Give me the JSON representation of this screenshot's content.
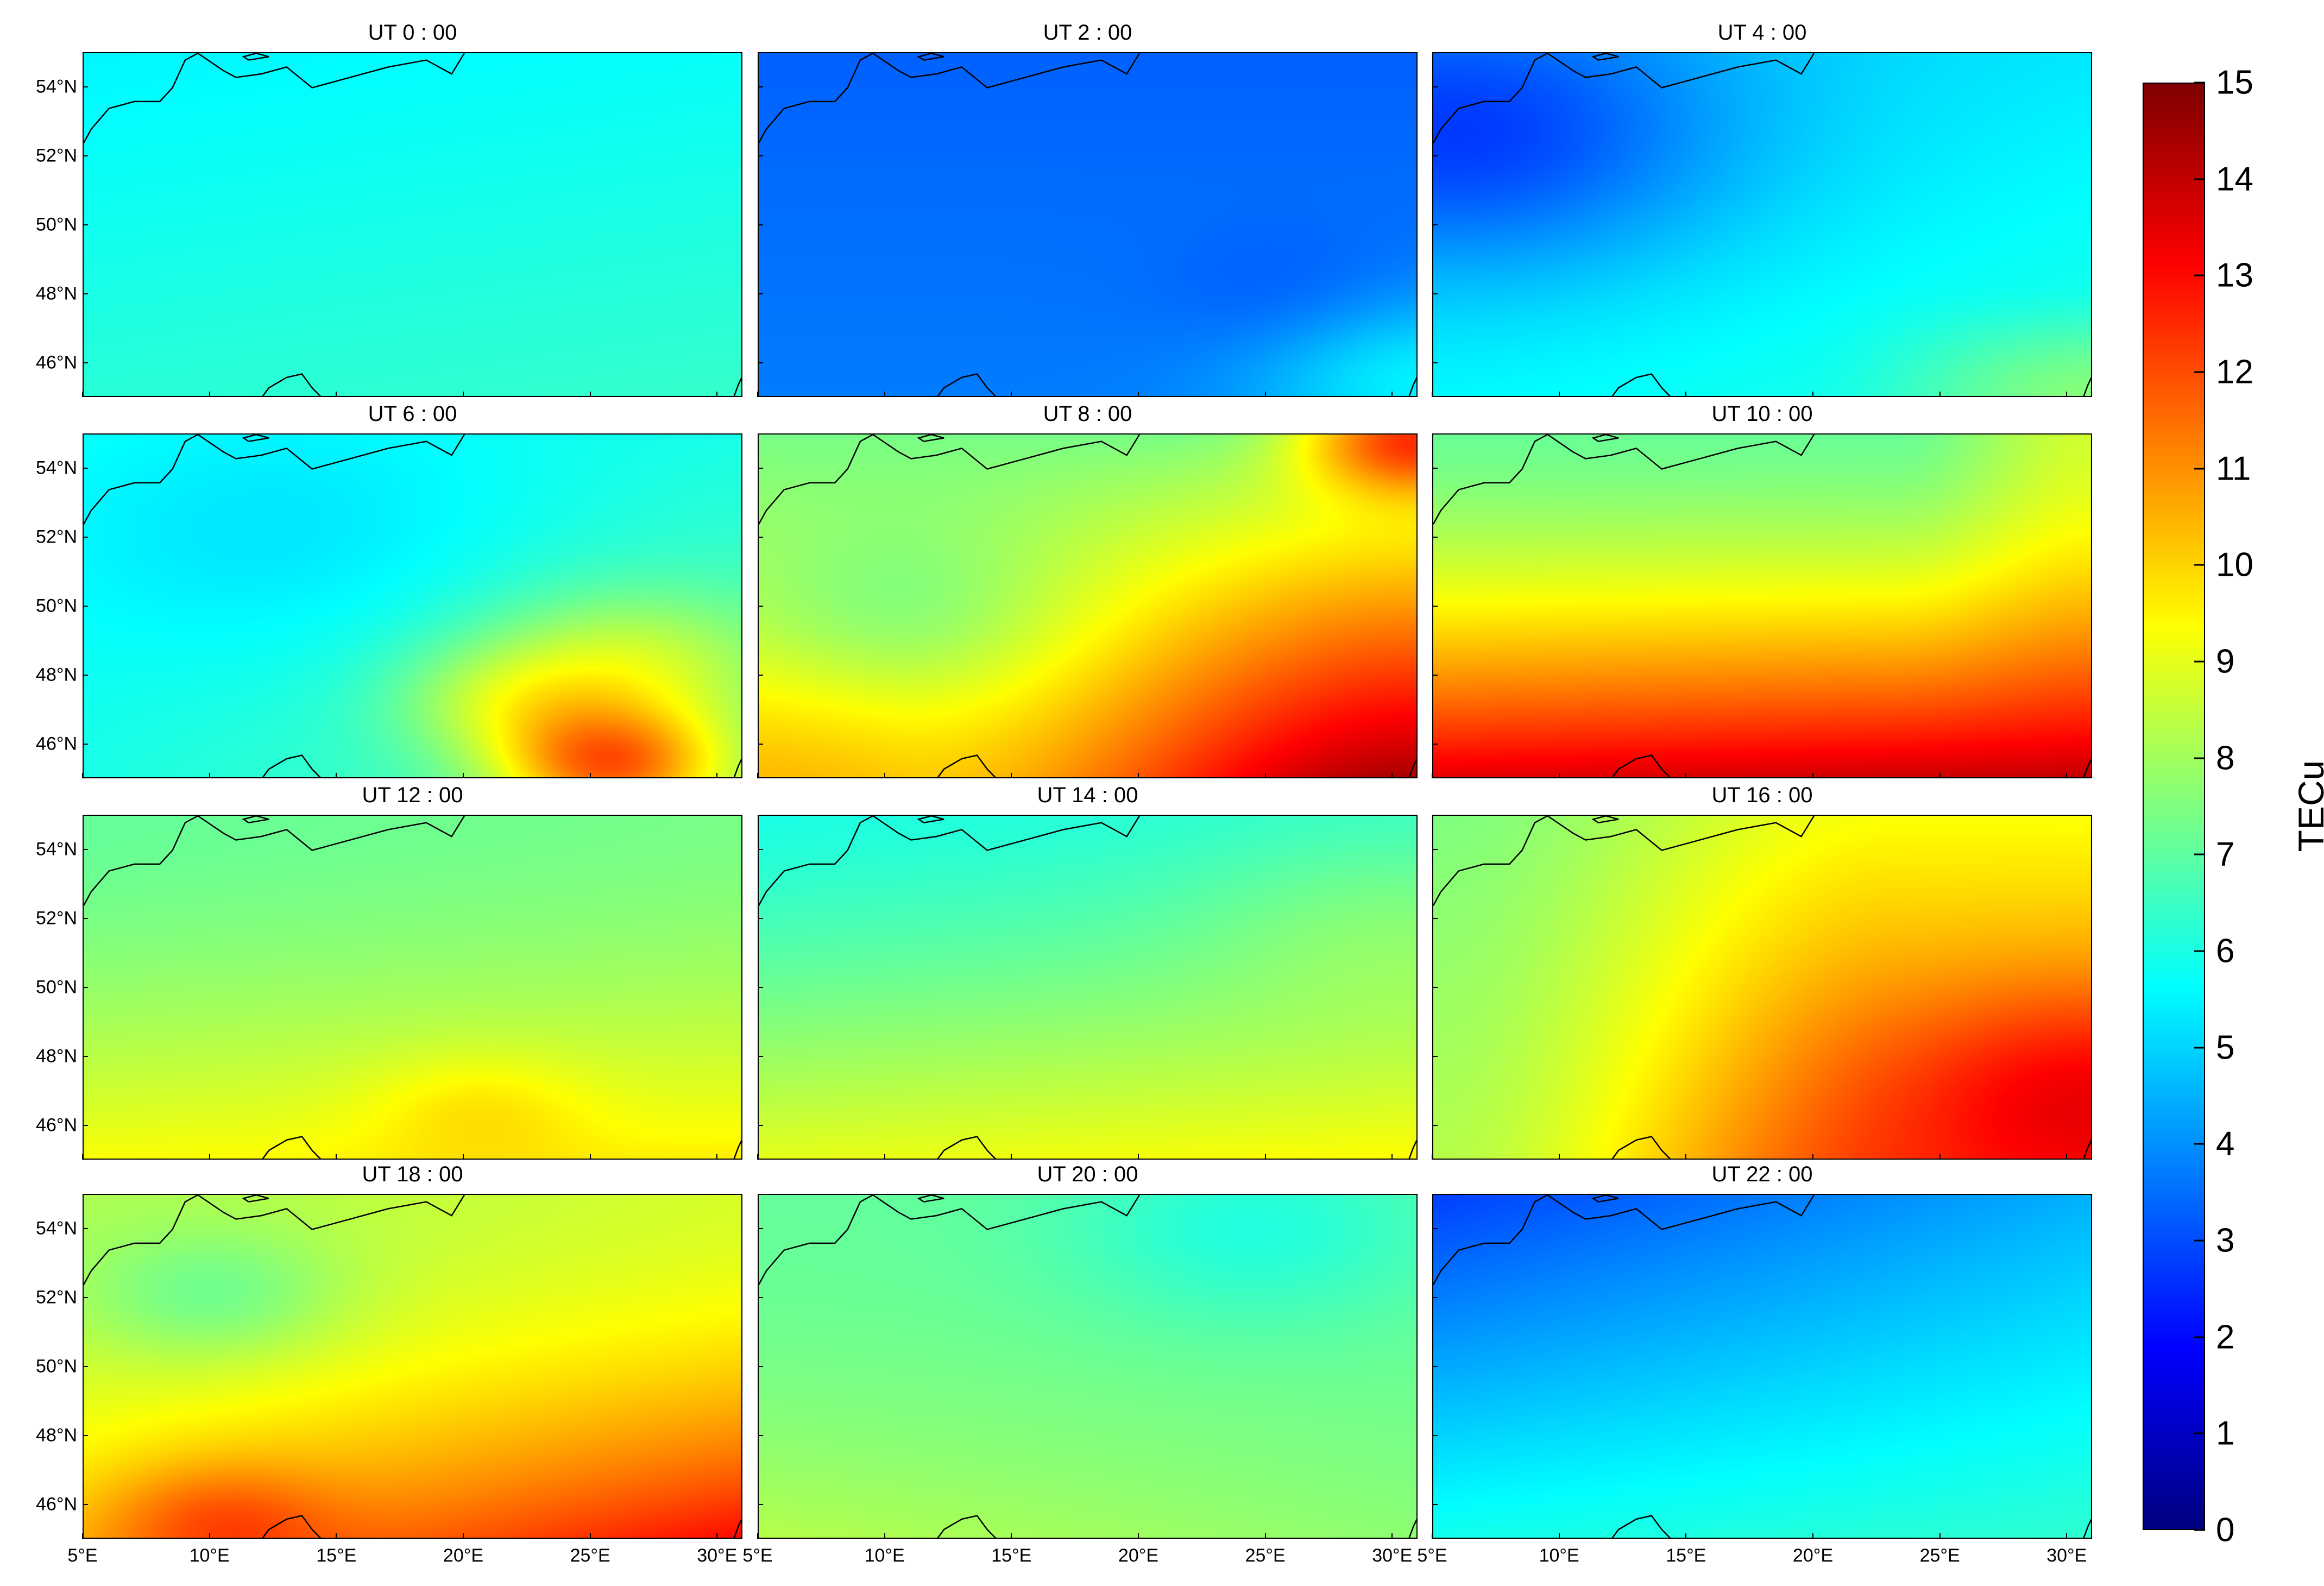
{
  "figure": {
    "panels": [
      {
        "title": "UT 0 : 00",
        "pattern": "ut0"
      },
      {
        "title": "UT 2 : 00",
        "pattern": "ut2"
      },
      {
        "title": "UT 4 : 00",
        "pattern": "ut4"
      },
      {
        "title": "UT 6 : 00",
        "pattern": "ut6"
      },
      {
        "title": "UT 8 : 00",
        "pattern": "ut8"
      },
      {
        "title": "UT 10 : 00",
        "pattern": "ut10"
      },
      {
        "title": "UT 12 : 00",
        "pattern": "ut12"
      },
      {
        "title": "UT 14 : 00",
        "pattern": "ut14"
      },
      {
        "title": "UT 16 : 00",
        "pattern": "ut16"
      },
      {
        "title": "UT 18 : 00",
        "pattern": "ut18"
      },
      {
        "title": "UT 20 : 00",
        "pattern": "ut20"
      },
      {
        "title": "UT 22 : 00",
        "pattern": "ut22"
      }
    ],
    "lat_ticks": [
      {
        "label": "54°N",
        "value": 54
      },
      {
        "label": "52°N",
        "value": 52
      },
      {
        "label": "50°N",
        "value": 50
      },
      {
        "label": "48°N",
        "value": 48
      },
      {
        "label": "46°N",
        "value": 46
      }
    ],
    "lon_ticks": [
      {
        "label": "5°E",
        "value": 5
      },
      {
        "label": "10°E",
        "value": 10
      },
      {
        "label": "15°E",
        "value": 15
      },
      {
        "label": "20°E",
        "value": 20
      },
      {
        "label": "25°E",
        "value": 25
      },
      {
        "label": "30°E",
        "value": 30
      }
    ],
    "lon_range": [
      5,
      31
    ],
    "lat_range": [
      45,
      55
    ],
    "colorbar": {
      "label": "TECu",
      "min": 0,
      "max": 15,
      "ticks": [
        "0",
        "1",
        "2",
        "3",
        "4",
        "5",
        "6",
        "7",
        "8",
        "9",
        "10",
        "11",
        "12",
        "13",
        "14",
        "15"
      ],
      "colormap": "jet"
    }
  }
}
